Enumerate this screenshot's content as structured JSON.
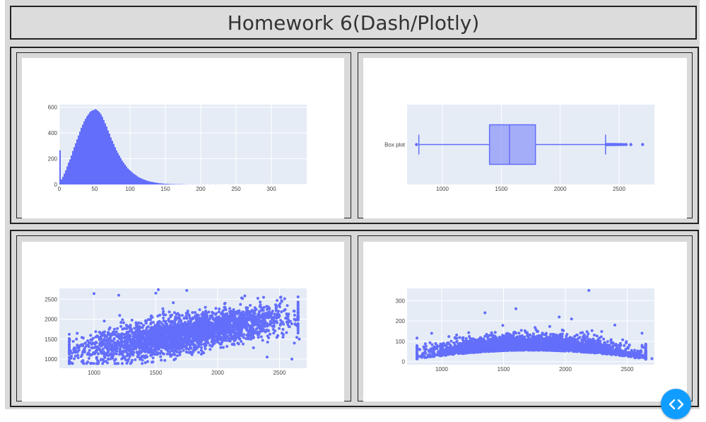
{
  "header": {
    "title": "Homework 6(Dash/Plotly)"
  },
  "colors": {
    "marker": "#636efa",
    "plot_bg": "#e5ecf6",
    "paper_bg": "#ffffff",
    "debug_button": "#119dff"
  },
  "debug_button": {
    "icon": "code-brackets-icon"
  },
  "chart_data": [
    {
      "type": "bar",
      "subtype": "histogram",
      "title": "",
      "xlabel": "",
      "ylabel": "",
      "xlim": [
        0,
        350
      ],
      "ylim": [
        0,
        620
      ],
      "x_ticks": [
        "0",
        "50",
        "100",
        "150",
        "200",
        "250",
        "300"
      ],
      "x_tick_values": [
        0,
        50,
        100,
        150,
        200,
        250,
        300
      ],
      "y_ticks": [
        "0",
        "200",
        "400",
        "600"
      ],
      "y_tick_values": [
        0,
        200,
        400,
        600
      ],
      "bin_width": 2,
      "bin_starts": [
        0,
        2,
        4,
        6,
        8,
        10,
        12,
        14,
        16,
        18,
        20,
        22,
        24,
        26,
        28,
        30,
        32,
        34,
        36,
        38,
        40,
        42,
        44,
        46,
        48,
        50,
        52,
        54,
        56,
        58,
        60,
        62,
        64,
        66,
        68,
        70,
        72,
        74,
        76,
        78,
        80,
        82,
        84,
        86,
        88,
        90,
        92,
        94,
        96,
        98,
        100,
        102,
        104,
        106,
        108,
        110,
        112,
        114,
        116,
        118,
        120,
        122,
        124,
        126,
        128,
        130,
        132,
        134,
        136,
        138,
        140,
        142,
        144,
        146,
        148,
        150,
        152,
        154,
        156,
        158,
        160,
        162,
        164,
        166,
        168,
        170,
        172,
        174,
        176,
        178,
        180,
        184,
        188,
        192,
        196,
        200,
        206,
        212,
        220,
        228,
        240,
        260
      ],
      "values": [
        265,
        40,
        60,
        85,
        110,
        140,
        170,
        195,
        225,
        260,
        290,
        320,
        350,
        380,
        410,
        440,
        465,
        490,
        510,
        530,
        545,
        560,
        570,
        575,
        580,
        585,
        580,
        570,
        560,
        545,
        525,
        500,
        475,
        450,
        420,
        395,
        365,
        340,
        315,
        290,
        265,
        245,
        225,
        205,
        185,
        170,
        155,
        140,
        125,
        115,
        105,
        95,
        85,
        78,
        70,
        62,
        55,
        50,
        45,
        40,
        36,
        32,
        28,
        25,
        22,
        20,
        18,
        16,
        14,
        12,
        10,
        9,
        8,
        7,
        6,
        5,
        5,
        4,
        4,
        3,
        3,
        3,
        2,
        2,
        2,
        2,
        2,
        1,
        1,
        1,
        1,
        1,
        1,
        1,
        1,
        1,
        1,
        1,
        1,
        1,
        1,
        1
      ]
    },
    {
      "type": "box",
      "title": "",
      "category": "Box plot",
      "xlim": [
        700,
        2800
      ],
      "x_ticks": [
        "1000",
        "1500",
        "2000",
        "2500"
      ],
      "x_tick_values": [
        1000,
        1500,
        2000,
        2500
      ],
      "lower_fence": 800,
      "q1": 1400,
      "median": 1570,
      "q3": 1790,
      "upper_fence": 2385,
      "outliers": [
        780,
        2395,
        2405,
        2415,
        2425,
        2435,
        2445,
        2455,
        2465,
        2475,
        2490,
        2505,
        2520,
        2540,
        2560,
        2600,
        2700
      ]
    },
    {
      "type": "scatter",
      "title": "",
      "xlim": [
        720,
        2720
      ],
      "ylim": [
        770,
        2770
      ],
      "x_ticks": [
        "1000",
        "1500",
        "2000",
        "2500"
      ],
      "x_tick_values": [
        1000,
        1500,
        2000,
        2500
      ],
      "y_ticks": [
        "1000",
        "1500",
        "2000",
        "2500"
      ],
      "y_tick_values": [
        1000,
        1500,
        2000,
        2500
      ],
      "trend": {
        "x_range": [
          800,
          2650
        ],
        "y_at_x_min": 1170,
        "y_at_x_max": 2100,
        "spread": 430
      },
      "extra_points": [
        [
          1000,
          2640
        ],
        [
          1200,
          2600
        ],
        [
          1500,
          2650
        ],
        [
          1520,
          2740
        ],
        [
          1750,
          2720
        ],
        [
          2620,
          2200
        ],
        [
          2620,
          1400
        ],
        [
          2660,
          1500
        ],
        [
          2600,
          1000
        ],
        [
          2400,
          1050
        ]
      ]
    },
    {
      "type": "scatter",
      "title": "",
      "xlim": [
        720,
        2720
      ],
      "ylim": [
        -15,
        360
      ],
      "x_ticks": [
        "1000",
        "1500",
        "2000",
        "2500"
      ],
      "x_tick_values": [
        1000,
        1500,
        2000,
        2500
      ],
      "y_ticks": [
        "0",
        "100",
        "200",
        "300"
      ],
      "y_tick_values": [
        0,
        100,
        200,
        300
      ],
      "trend": {
        "x_range": [
          800,
          2650
        ],
        "y_at_x_min": 20,
        "y_at_x_max": 25,
        "y_at_x_mid": 65,
        "spread": 60
      },
      "extra_points": [
        [
          2190,
          350
        ],
        [
          1600,
          260
        ],
        [
          1350,
          240
        ],
        [
          1950,
          220
        ],
        [
          2050,
          210
        ],
        [
          2400,
          180
        ],
        [
          2620,
          140
        ],
        [
          2620,
          80
        ],
        [
          2700,
          15
        ]
      ]
    }
  ]
}
